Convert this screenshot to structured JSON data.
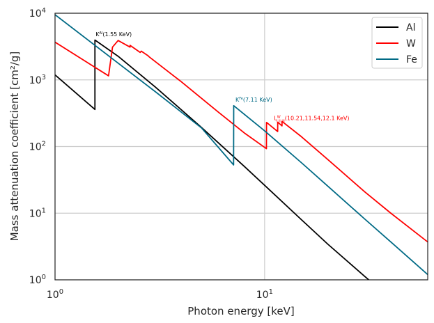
{
  "chart_data": {
    "type": "line",
    "title": "",
    "xlabel": "Photon energy [keV]",
    "ylabel": "Mass attenuation coefficient [cm²/g]",
    "xscale": "log",
    "yscale": "log",
    "xlim": [
      1,
      60
    ],
    "ylim": [
      1,
      10000
    ],
    "grid": true,
    "legend_position": "top-right",
    "x_ticks": [
      {
        "value": 1,
        "base": "10",
        "exp": "0"
      },
      {
        "value": 10,
        "base": "10",
        "exp": "1"
      }
    ],
    "y_ticks": [
      {
        "value": 1,
        "base": "10",
        "exp": "0"
      },
      {
        "value": 10,
        "base": "10",
        "exp": "1"
      },
      {
        "value": 100,
        "base": "10",
        "exp": "2"
      },
      {
        "value": 1000,
        "base": "10",
        "exp": "3"
      },
      {
        "value": 10000,
        "base": "10",
        "exp": "4"
      }
    ],
    "series": [
      {
        "name": "Al",
        "color": "#000000",
        "points": [
          [
            1.0,
            1190
          ],
          [
            1.55,
            360
          ],
          [
            1.55,
            3960
          ],
          [
            2.0,
            2260
          ],
          [
            3.0,
            788
          ],
          [
            5.0,
            193
          ],
          [
            8.0,
            50.3
          ],
          [
            10.0,
            26.2
          ],
          [
            15.0,
            7.96
          ],
          [
            20.0,
            3.44
          ],
          [
            30.0,
            1.13
          ],
          [
            32.0,
            0.95
          ]
        ]
      },
      {
        "name": "W",
        "color": "#ff0000",
        "points": [
          [
            1.0,
            3680
          ],
          [
            1.8,
            1150
          ],
          [
            1.88,
            3100
          ],
          [
            2.0,
            3900
          ],
          [
            2.28,
            3100
          ],
          [
            2.28,
            3300
          ],
          [
            2.55,
            2580
          ],
          [
            2.58,
            2700
          ],
          [
            2.78,
            2300
          ],
          [
            2.82,
            2200
          ],
          [
            4.0,
            940
          ],
          [
            6.0,
            330
          ],
          [
            8.0,
            160
          ],
          [
            10.2,
            93
          ],
          [
            10.21,
            230
          ],
          [
            11.54,
            168
          ],
          [
            11.55,
            232
          ],
          [
            12.1,
            204
          ],
          [
            12.11,
            238
          ],
          [
            15.0,
            140
          ],
          [
            20.0,
            64
          ],
          [
            30.0,
            21
          ],
          [
            40.0,
            10
          ],
          [
            60.0,
            3.7
          ]
        ]
      },
      {
        "name": "Fe",
        "color": "#006a85",
        "points": [
          [
            1.0,
            9500
          ],
          [
            3.0,
            670
          ],
          [
            5.0,
            190
          ],
          [
            7.11,
            53
          ],
          [
            7.12,
            410
          ],
          [
            10.0,
            172
          ],
          [
            15.0,
            57
          ],
          [
            20.0,
            25.5
          ],
          [
            30.0,
            8.2
          ],
          [
            40.0,
            3.7
          ],
          [
            60.0,
            1.2
          ]
        ]
      }
    ],
    "annotations": [
      {
        "label": "K",
        "sup": "Al",
        "text": "(1.55  KeV)",
        "x": 1.55,
        "y": 4500,
        "color": "#000000"
      },
      {
        "label": "K",
        "sup": "Fe",
        "text": "(7.11 KeV)",
        "x": 7.2,
        "y": 470,
        "color": "#006a85"
      },
      {
        "label": "L",
        "sup": "W",
        "sub": "I,II,III",
        "text": "(10.21,11.54,12.1 KeV)",
        "x": 11.0,
        "y": 250,
        "color": "#ff0000"
      }
    ]
  }
}
